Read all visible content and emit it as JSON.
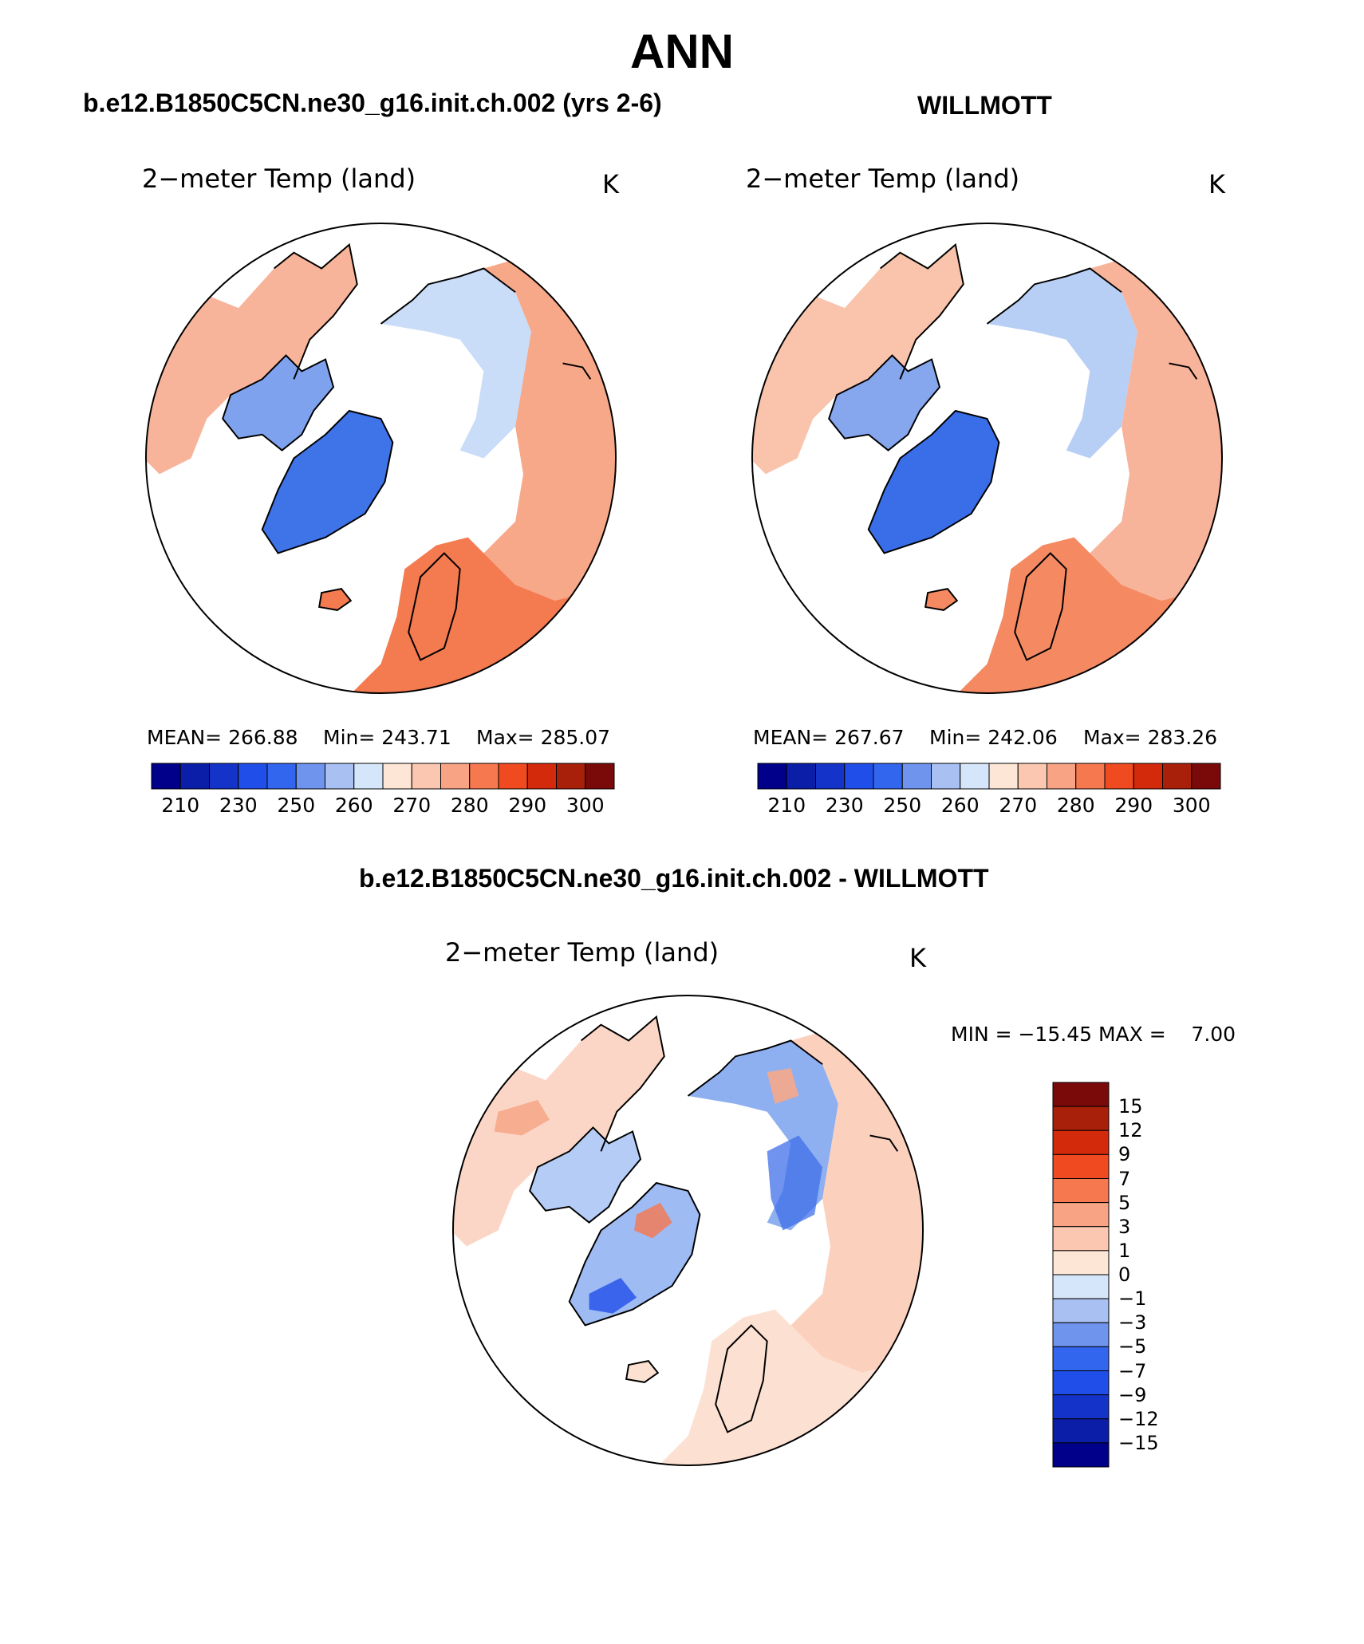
{
  "figure_title": "ANN",
  "panels": {
    "model": {
      "header": "b.e12.B1850C5CN.ne30_g16.init.ch.002 (yrs 2-6)",
      "variable": "2−meter Temp (land)",
      "units": "K",
      "stats": {
        "mean": "MEAN= 266.88",
        "min": "Min= 243.71",
        "max": "Max= 285.07"
      }
    },
    "obs": {
      "header": "WILLMOTT",
      "variable": "2−meter Temp (land)",
      "units": "K",
      "stats": {
        "mean": "MEAN= 267.67",
        "min": "Min= 242.06",
        "max": "Max= 283.26"
      }
    },
    "diff": {
      "header": "b.e12.B1850C5CN.ne30_g16.init.ch.002 - WILLMOTT",
      "variable": "2−meter Temp (land)",
      "units": "K",
      "minmax": "MIN = −15.45 MAX =    7.00"
    }
  },
  "colorbar_abs": {
    "labels": [
      "210",
      "230",
      "250",
      "260",
      "270",
      "280",
      "290",
      "300"
    ],
    "colors": [
      "#00008b",
      "#0a1ea8",
      "#1433c8",
      "#1f4fe8",
      "#3366ee",
      "#6f94ee",
      "#a8c0f2",
      "#d6e6fa",
      "#fde6d5",
      "#fbc7b0",
      "#f8a383",
      "#f6784f",
      "#f04a20",
      "#d42a0c",
      "#a8200a",
      "#7a0a0a"
    ]
  },
  "colorbar_diff": {
    "labels": [
      "15",
      "12",
      "9",
      "7",
      "5",
      "3",
      "1",
      "0",
      "−1",
      "−3",
      "−5",
      "−7",
      "−9",
      "−12",
      "−15"
    ],
    "colors": [
      "#7a0a0a",
      "#a8200a",
      "#d42a0c",
      "#f04a20",
      "#f6784f",
      "#f8a383",
      "#fbc7b0",
      "#fde6d5",
      "#d6e6fa",
      "#a8c0f2",
      "#6f94ee",
      "#3366ee",
      "#1f4fe8",
      "#1433c8",
      "#0a1ea8",
      "#00008b"
    ]
  },
  "map_fill": {
    "ocean": "#ffffff",
    "model": {
      "eurasia": "#f6a888",
      "europe": "#f47a50",
      "siberia": "#c9dcf8",
      "greenland": "#3f73e8",
      "north_america": "#f8b49a",
      "arctic_canada": "#7fa2ee"
    },
    "obs": {
      "eurasia": "#f8b49a",
      "europe": "#f58a62",
      "siberia": "#b8cff5",
      "greenland": "#3a6ee8",
      "north_america": "#f9c3ac",
      "arctic_canada": "#86a7ee"
    },
    "diff": {
      "eurasia": "#fbd0bd",
      "europe": "#fce0d2",
      "siberia": "#8fb0f0",
      "greenland": "#9fbbf3",
      "north_america": "#fbd6c6",
      "arctic_canada": "#b5cdf6"
    }
  }
}
